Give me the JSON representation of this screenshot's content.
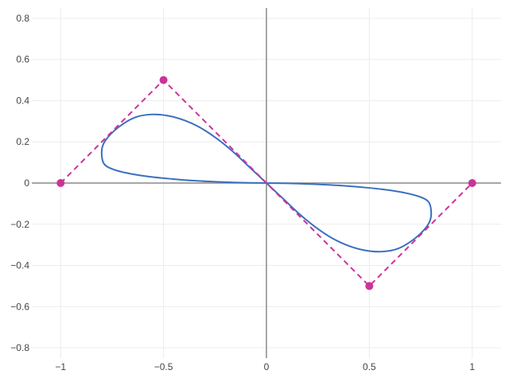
{
  "chart_data": {
    "type": "scatter",
    "title": "",
    "xlabel": "",
    "ylabel": "",
    "xlim": [
      -1.14,
      1.14
    ],
    "ylim": [
      -0.85,
      0.85
    ],
    "grid": true,
    "legend": false,
    "x_ticks": [
      -1,
      -0.5,
      0,
      0.5,
      1
    ],
    "x_tick_labels": [
      "−1",
      "−0.5",
      "0",
      "0.5",
      "1"
    ],
    "y_ticks": [
      -0.8,
      -0.6,
      -0.4,
      -0.2,
      0,
      0.2,
      0.4,
      0.6,
      0.8
    ],
    "y_tick_labels": [
      "−0.8",
      "−0.6",
      "−0.4",
      "−0.2",
      "0",
      "0.2",
      "0.4",
      "0.6",
      "0.8"
    ],
    "series": [
      {
        "mode": "lines",
        "color": "#3a6fc0",
        "x": [
          0,
          -0.08,
          -0.16,
          -0.24,
          -0.32,
          -0.4,
          -0.48,
          -0.56,
          -0.64,
          -0.72,
          -0.78,
          -0.8,
          -0.79,
          -0.74,
          -0.66,
          -0.56,
          -0.46,
          -0.36,
          -0.26,
          -0.16,
          -0.08,
          0,
          0.08,
          0.16,
          0.26,
          0.36,
          0.46,
          0.56,
          0.66,
          0.74,
          0.79,
          0.8,
          0.78,
          0.72,
          0.64,
          0.56,
          0.48,
          0.4,
          0.32,
          0.24,
          0.16,
          0.08,
          0
        ],
        "y": [
          0,
          0.075,
          0.15,
          0.215,
          0.268,
          0.305,
          0.327,
          0.333,
          0.318,
          0.27,
          0.21,
          0.16,
          0.095,
          0.065,
          0.045,
          0.03,
          0.02,
          0.012,
          0.007,
          0.003,
          0.001,
          0,
          -0.001,
          -0.003,
          -0.007,
          -0.012,
          -0.02,
          -0.03,
          -0.045,
          -0.065,
          -0.095,
          -0.16,
          -0.21,
          -0.27,
          -0.318,
          -0.333,
          -0.327,
          -0.305,
          -0.268,
          -0.215,
          -0.15,
          -0.075,
          0
        ]
      },
      {
        "mode": "lines+markers",
        "color": "#cc3399",
        "dash": "dash",
        "x": [
          -1,
          -0.5,
          0,
          0.5,
          1
        ],
        "y": [
          0,
          0.5,
          0,
          -0.5,
          0
        ],
        "marker_indices": [
          0,
          1,
          3,
          4
        ]
      }
    ]
  }
}
